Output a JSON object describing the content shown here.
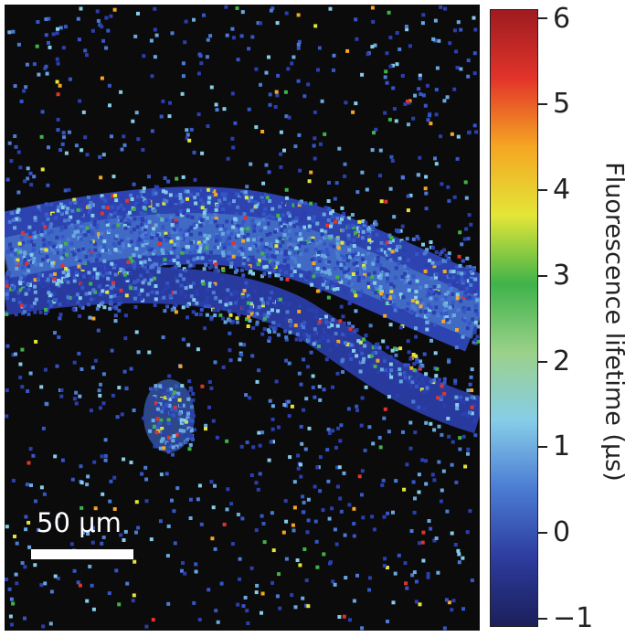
{
  "image": {
    "scalebar_label": "50 μm"
  },
  "colorbar": {
    "title": "Fluorescence lifetime (μs)",
    "min": -1,
    "max": 6,
    "ticks": [
      "6",
      "5",
      "4",
      "3",
      "2",
      "1",
      "0",
      "−1"
    ],
    "colors": [
      "#1b1f5a",
      "#2d3c9e",
      "#4b7bd3",
      "#86cde8",
      "#9bd18a",
      "#3fb34a",
      "#e3e637",
      "#f5a623",
      "#e2342a",
      "#9e1b20"
    ]
  }
}
